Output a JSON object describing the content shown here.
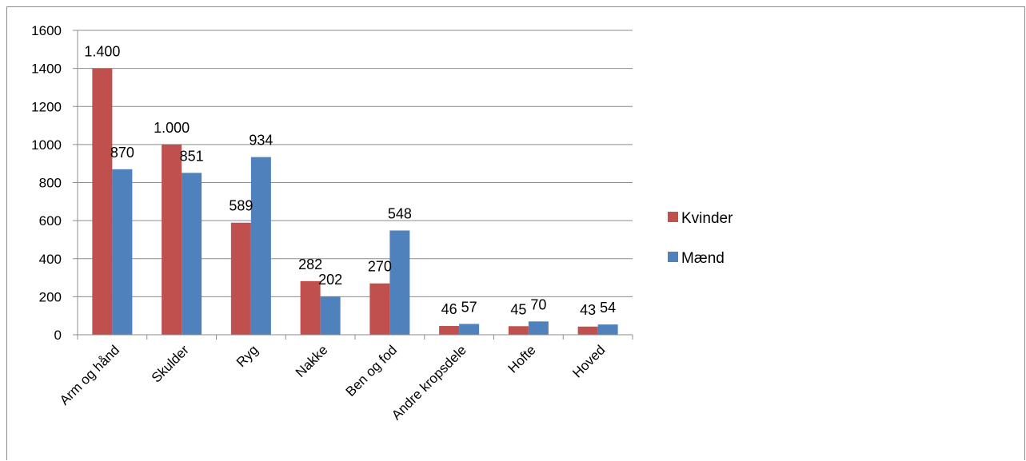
{
  "chart_data": {
    "type": "bar",
    "categories": [
      "Arm og hånd",
      "Skulder",
      "Ryg",
      "Nakke",
      "Ben og fod",
      "Andre kropsdele",
      "Hofte",
      "Hoved"
    ],
    "series": [
      {
        "name": "Kvinder",
        "color": "#c0504d",
        "values": [
          1400,
          1000,
          589,
          282,
          270,
          46,
          45,
          43
        ],
        "labels": [
          "1.400",
          "1.000",
          "589",
          "282",
          "270",
          "46",
          "45",
          "43"
        ]
      },
      {
        "name": "Mænd",
        "color": "#4f81bd",
        "values": [
          870,
          851,
          934,
          202,
          548,
          57,
          70,
          54
        ],
        "labels": [
          "870",
          "851",
          "934",
          "202",
          "548",
          "57",
          "70",
          "54"
        ]
      }
    ],
    "ylim": [
      0,
      1600
    ],
    "yticks": [
      0,
      200,
      400,
      600,
      800,
      1000,
      1200,
      1400,
      1600
    ],
    "grid": true,
    "legend_position": "right"
  }
}
